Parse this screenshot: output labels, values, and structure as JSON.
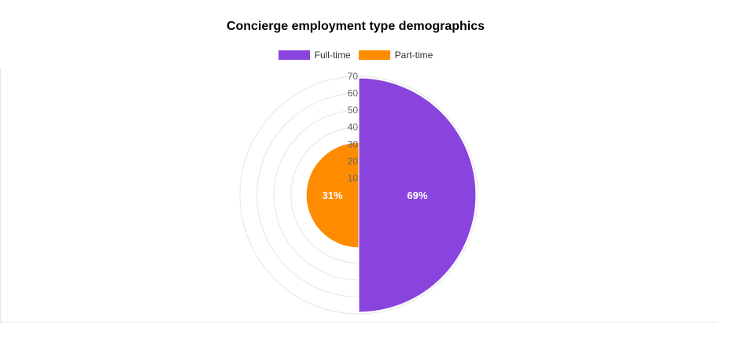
{
  "title": "Concierge employment type demographics",
  "colors": {
    "full_time": "#8844dd",
    "part_time": "#ff8c00",
    "grid": "#e5e5e5",
    "tick": "#666666"
  },
  "chart_data": {
    "type": "polarArea",
    "title": "Concierge employment type demographics",
    "categories": [
      "Full-time",
      "Part-time"
    ],
    "values": [
      69,
      31
    ],
    "data_labels": [
      "69%",
      "31%"
    ],
    "radial_range": [
      0,
      70
    ],
    "radial_ticks": [
      0,
      10,
      20,
      30,
      40,
      50,
      60,
      70
    ],
    "grid": true,
    "legend_position": "top"
  },
  "legend": [
    {
      "label": "Full-time",
      "color": "#8844dd"
    },
    {
      "label": "Part-time",
      "color": "#ff8c00"
    }
  ]
}
